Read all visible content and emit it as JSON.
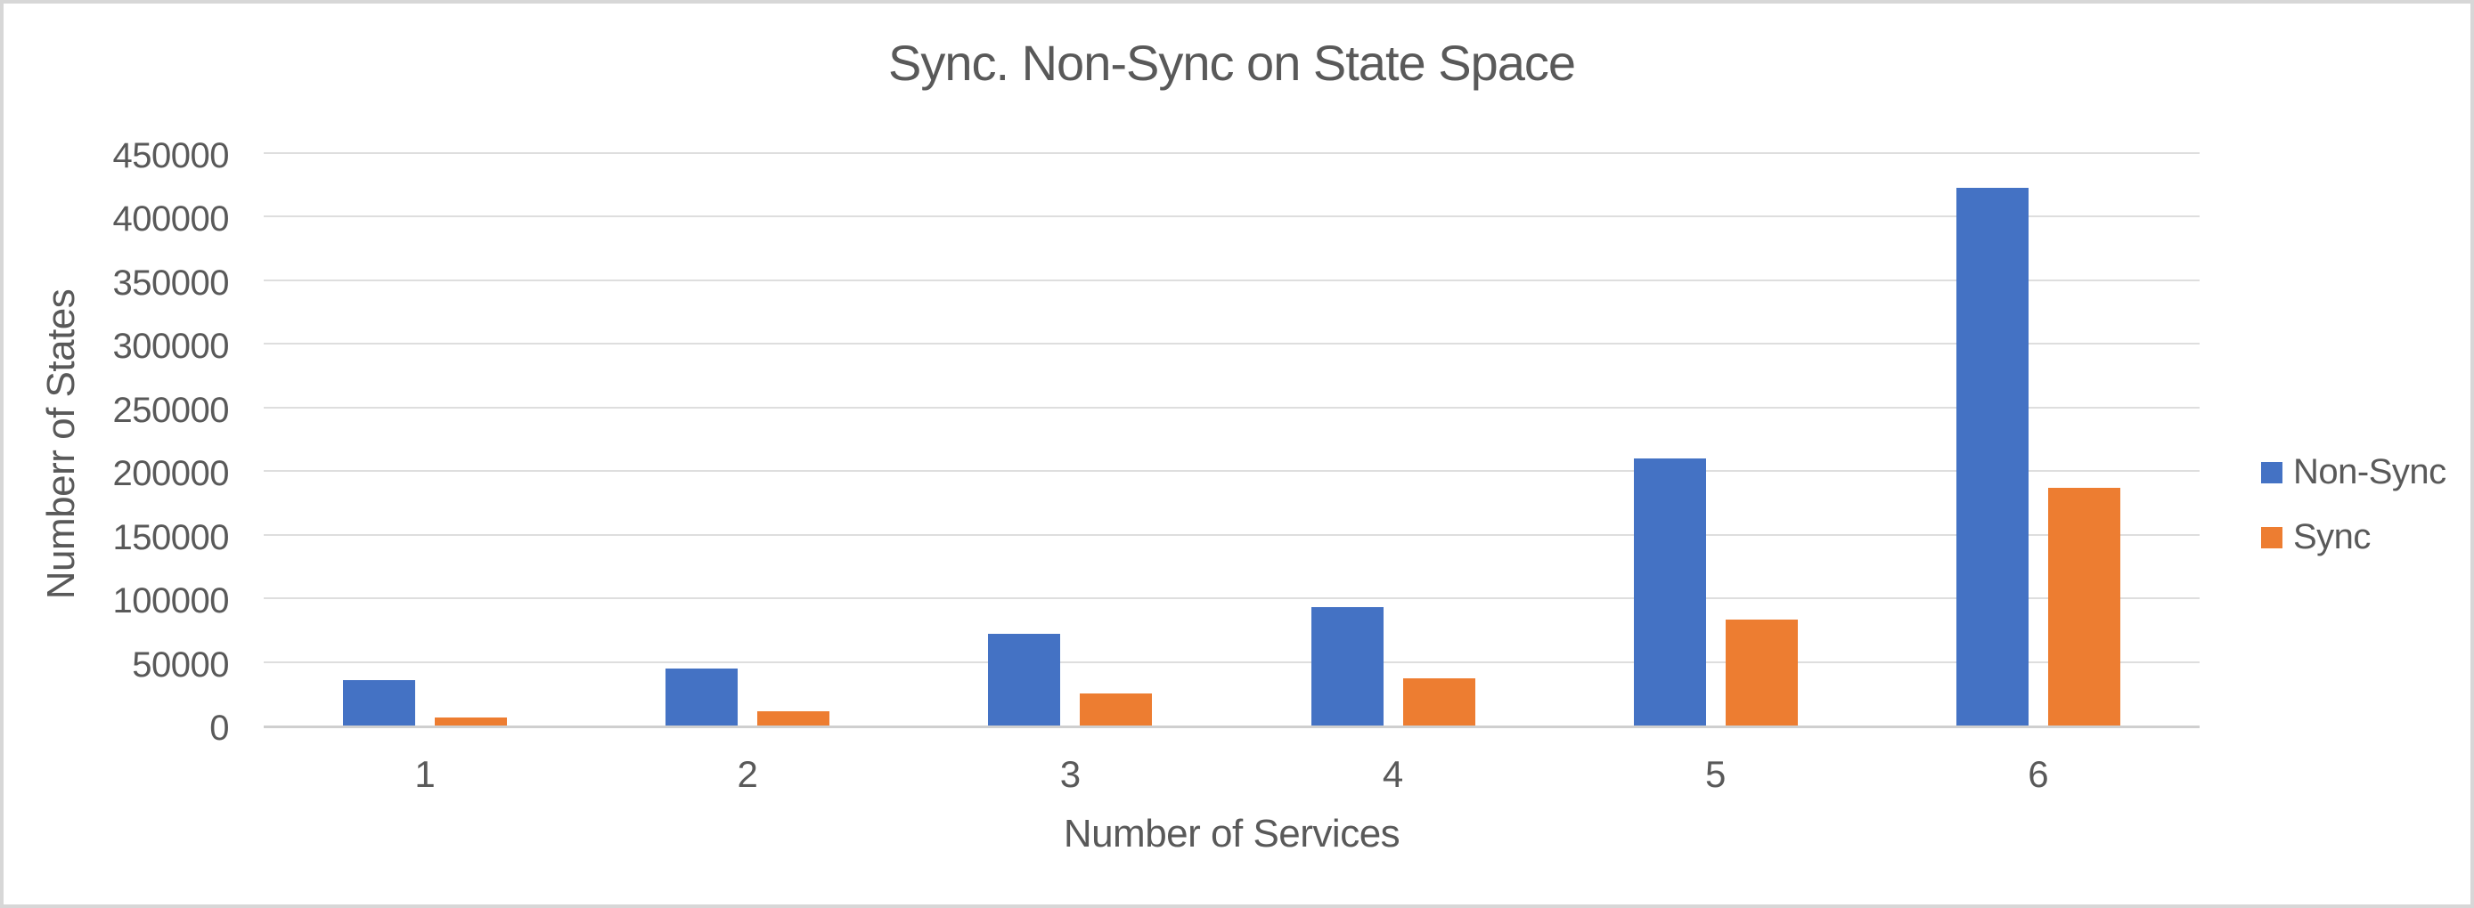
{
  "chart_data": {
    "type": "bar",
    "title": "Sync. Non-Sync on State Space",
    "xlabel": "Number of Services",
    "ylabel": "Numberr of States",
    "categories": [
      "1",
      "2",
      "3",
      "4",
      "5",
      "6"
    ],
    "series": [
      {
        "name": "Non-Sync",
        "color": "#4472C4",
        "values": [
          36000,
          45000,
          72000,
          93000,
          210000,
          423000
        ]
      },
      {
        "name": "Sync",
        "color": "#ED7D31",
        "values": [
          6000,
          11000,
          25000,
          37000,
          83000,
          187000
        ]
      }
    ],
    "ylim": [
      0,
      450000
    ],
    "ytick_step": 50000,
    "ytick_labels": [
      "0",
      "50000",
      "100000",
      "150000",
      "200000",
      "250000",
      "300000",
      "350000",
      "400000",
      "450000"
    ],
    "grid": true,
    "legend_position": "right",
    "legend_entries": [
      "Non-Sync",
      "Sync"
    ]
  },
  "colors": {
    "text": "#595959",
    "gridline": "#DEDEDE",
    "axis_line": "#CFCFCF",
    "frame_border": "#D7D7D7",
    "background": "#FFFFFF",
    "series_non_sync": "#4472C4",
    "series_sync": "#ED7D31"
  }
}
